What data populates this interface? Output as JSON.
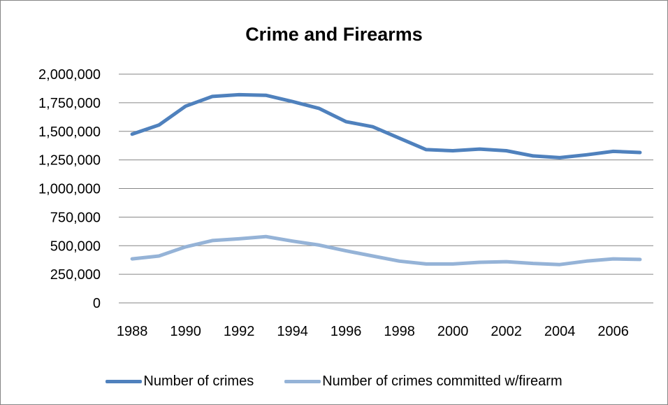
{
  "chart_data": {
    "type": "line",
    "title": "Crime and Firearms",
    "x": [
      1988,
      1989,
      1990,
      1991,
      1992,
      1993,
      1994,
      1995,
      1996,
      1997,
      1998,
      1999,
      2000,
      2001,
      2002,
      2003,
      2004,
      2005,
      2006,
      2007
    ],
    "x_tick_labels": [
      "1988",
      "1990",
      "1992",
      "1994",
      "1996",
      "1998",
      "2000",
      "2002",
      "2004",
      "2006"
    ],
    "y_tick_labels": [
      "0",
      "250,000",
      "500,000",
      "750,000",
      "1,000,000",
      "1,250,000",
      "1,500,000",
      "1,750,000",
      "2,000,000"
    ],
    "ylim": [
      0,
      2000000
    ],
    "grid": true,
    "legend_position": "bottom",
    "series": [
      {
        "name": "Number of crimes",
        "color": "#4f81bd",
        "values": [
          1475000,
          1555000,
          1720000,
          1805000,
          1820000,
          1815000,
          1760000,
          1700000,
          1585000,
          1540000,
          1440000,
          1340000,
          1330000,
          1345000,
          1330000,
          1285000,
          1270000,
          1295000,
          1325000,
          1315000
        ]
      },
      {
        "name": "Number of crimes committed w/firearm",
        "color": "#95b3d7",
        "values": [
          385000,
          410000,
          490000,
          545000,
          560000,
          580000,
          540000,
          505000,
          455000,
          410000,
          365000,
          340000,
          340000,
          355000,
          360000,
          345000,
          335000,
          365000,
          385000,
          380000
        ]
      }
    ]
  }
}
